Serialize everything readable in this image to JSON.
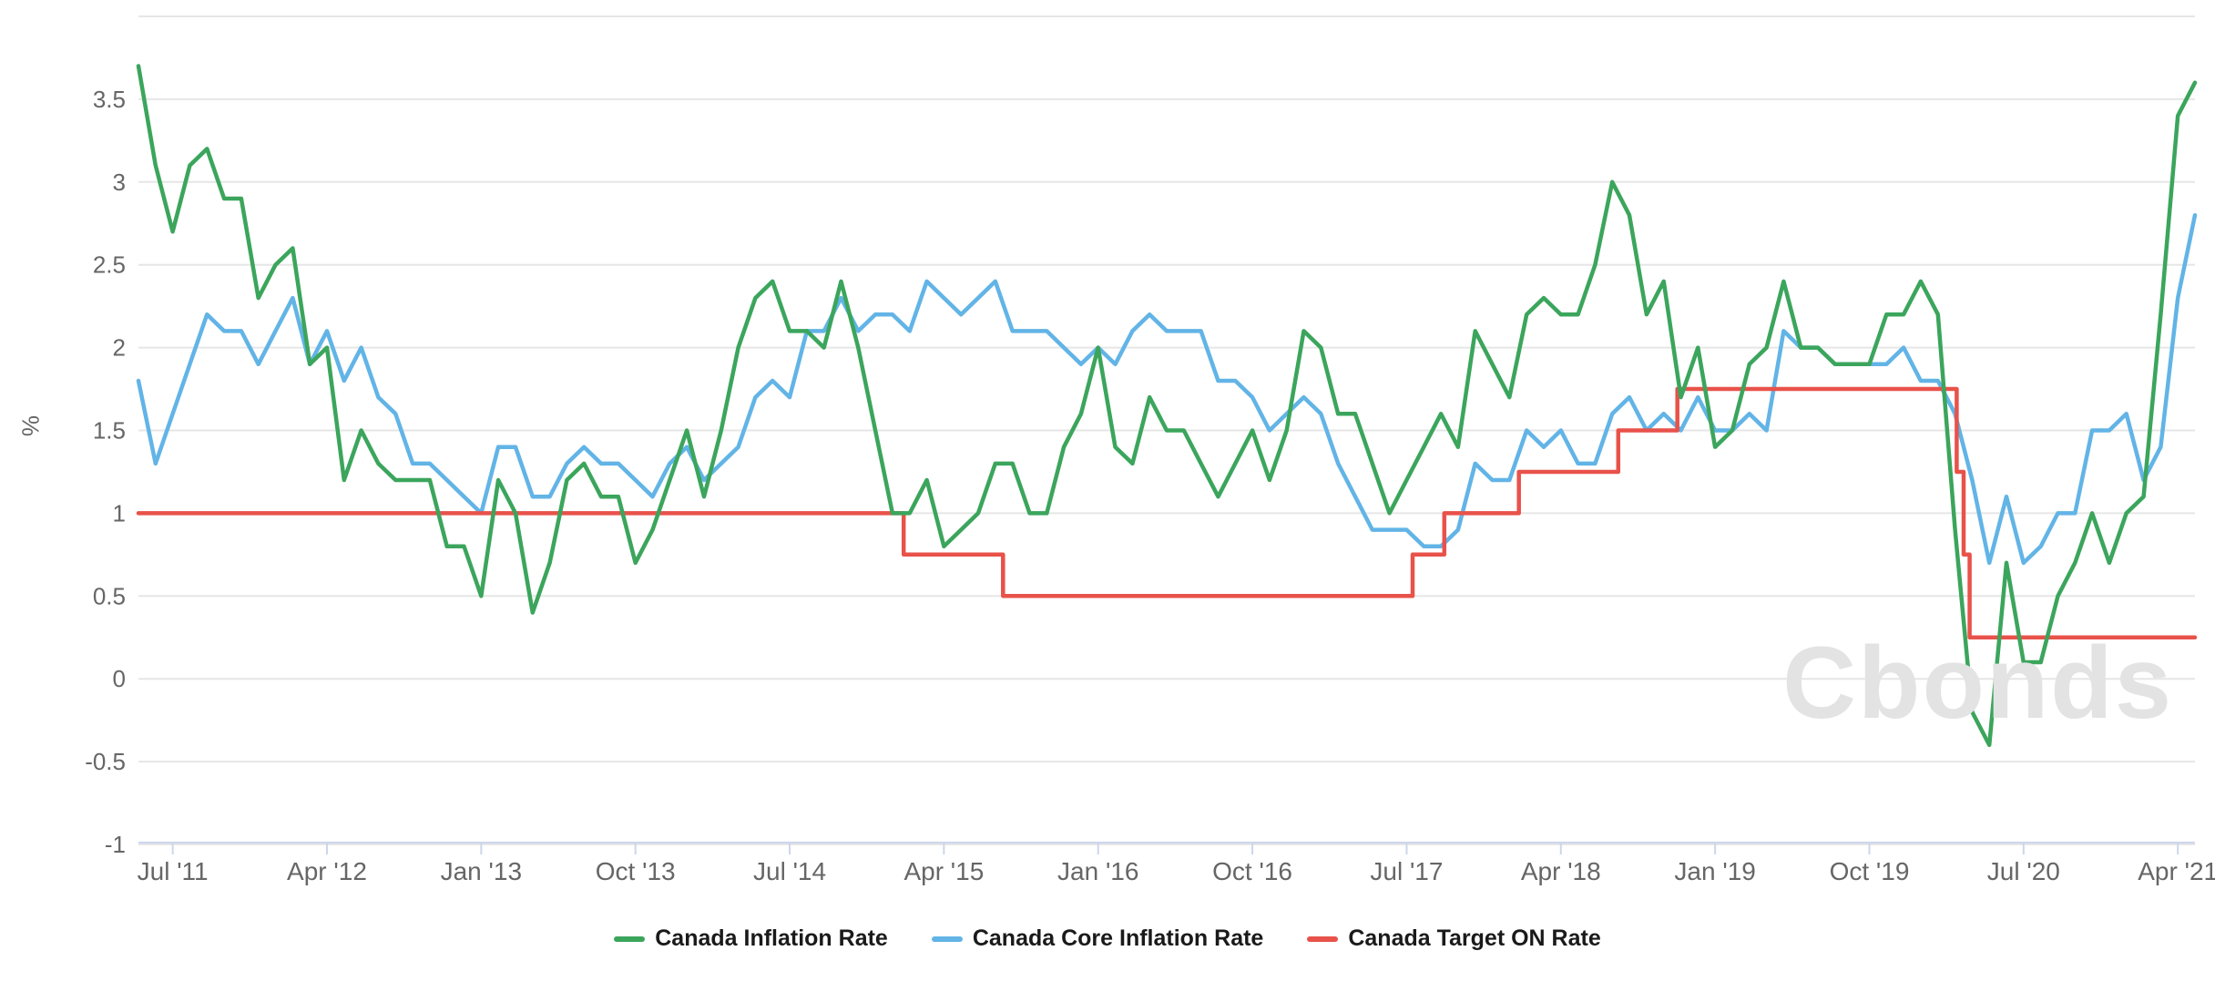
{
  "watermark": "Cbonds",
  "chart_data": {
    "type": "line",
    "title": "",
    "ylabel": "%",
    "grid": true,
    "legend_position": "bottom",
    "x_range": {
      "start": "May 2011",
      "end": "May 2021",
      "interval": "monthly"
    },
    "ylim": [
      -1,
      4
    ],
    "gridline_step": 0.5,
    "y_ticks": [
      {
        "value": 3.5,
        "label": "3.5"
      },
      {
        "value": 3,
        "label": "3"
      },
      {
        "value": 2.5,
        "label": "2.5"
      },
      {
        "value": 2,
        "label": "2"
      },
      {
        "value": 1.5,
        "label": "1.5"
      },
      {
        "value": 1,
        "label": "1"
      },
      {
        "value": 0.5,
        "label": "0.5"
      },
      {
        "value": 0,
        "label": "0"
      },
      {
        "value": -0.5,
        "label": "-0.5"
      },
      {
        "value": -1,
        "label": "-1"
      }
    ],
    "x_ticks": [
      {
        "month_index": 2,
        "label": "Jul '11"
      },
      {
        "month_index": 11,
        "label": "Apr '12"
      },
      {
        "month_index": 20,
        "label": "Jan '13"
      },
      {
        "month_index": 29,
        "label": "Oct '13"
      },
      {
        "month_index": 38,
        "label": "Jul '14"
      },
      {
        "month_index": 47,
        "label": "Apr '15"
      },
      {
        "month_index": 56,
        "label": "Jan '16"
      },
      {
        "month_index": 65,
        "label": "Oct '16"
      },
      {
        "month_index": 74,
        "label": "Jul '17"
      },
      {
        "month_index": 83,
        "label": "Apr '18"
      },
      {
        "month_index": 92,
        "label": "Jan '19"
      },
      {
        "month_index": 101,
        "label": "Oct '19"
      },
      {
        "month_index": 110,
        "label": "Jul '20"
      },
      {
        "month_index": 119,
        "label": "Apr '21"
      }
    ],
    "series": [
      {
        "name": "Canada Inflation Rate",
        "color": "#3BA55C",
        "type": "line",
        "values": [
          3.7,
          3.1,
          2.7,
          3.1,
          3.2,
          2.9,
          2.9,
          2.3,
          2.5,
          2.6,
          1.9,
          2.0,
          1.2,
          1.5,
          1.3,
          1.2,
          1.2,
          1.2,
          0.8,
          0.8,
          0.5,
          1.2,
          1.0,
          0.4,
          0.7,
          1.2,
          1.3,
          1.1,
          1.1,
          0.7,
          0.9,
          1.2,
          1.5,
          1.1,
          1.5,
          2.0,
          2.3,
          2.4,
          2.1,
          2.1,
          2.0,
          2.4,
          2.0,
          1.5,
          1.0,
          1.0,
          1.2,
          0.8,
          0.9,
          1.0,
          1.3,
          1.3,
          1.0,
          1.0,
          1.4,
          1.6,
          2.0,
          1.4,
          1.3,
          1.7,
          1.5,
          1.5,
          1.3,
          1.1,
          1.3,
          1.5,
          1.2,
          1.5,
          2.1,
          2.0,
          1.6,
          1.6,
          1.3,
          1.0,
          1.2,
          1.4,
          1.6,
          1.4,
          2.1,
          1.9,
          1.7,
          2.2,
          2.3,
          2.2,
          2.2,
          2.5,
          3.0,
          2.8,
          2.2,
          2.4,
          1.7,
          2.0,
          1.4,
          1.5,
          1.9,
          2.0,
          2.4,
          2.0,
          2.0,
          1.9,
          1.9,
          1.9,
          2.2,
          2.2,
          2.4,
          2.2,
          0.9,
          -0.2,
          -0.4,
          0.7,
          0.1,
          0.1,
          0.5,
          0.7,
          1.0,
          0.7,
          1.0,
          1.1,
          2.2,
          3.4,
          3.6
        ]
      },
      {
        "name": "Canada Core Inflation Rate",
        "color": "#62B4E6",
        "type": "line",
        "values": [
          1.8,
          1.3,
          1.6,
          1.9,
          2.2,
          2.1,
          2.1,
          1.9,
          2.1,
          2.3,
          1.9,
          2.1,
          1.8,
          2.0,
          1.7,
          1.6,
          1.3,
          1.3,
          1.2,
          1.1,
          1.0,
          1.4,
          1.4,
          1.1,
          1.1,
          1.3,
          1.4,
          1.3,
          1.3,
          1.2,
          1.1,
          1.3,
          1.4,
          1.2,
          1.3,
          1.4,
          1.7,
          1.8,
          1.7,
          2.1,
          2.1,
          2.3,
          2.1,
          2.2,
          2.2,
          2.1,
          2.4,
          2.3,
          2.2,
          2.3,
          2.4,
          2.1,
          2.1,
          2.1,
          2.0,
          1.9,
          2.0,
          1.9,
          2.1,
          2.2,
          2.1,
          2.1,
          2.1,
          1.8,
          1.8,
          1.7,
          1.5,
          1.6,
          1.7,
          1.6,
          1.3,
          1.1,
          0.9,
          0.9,
          0.9,
          0.8,
          0.8,
          0.9,
          1.3,
          1.2,
          1.2,
          1.5,
          1.4,
          1.5,
          1.3,
          1.3,
          1.6,
          1.7,
          1.5,
          1.6,
          1.5,
          1.7,
          1.5,
          1.5,
          1.6,
          1.5,
          2.1,
          2.0,
          2.0,
          1.9,
          1.9,
          1.9,
          1.9,
          2.0,
          1.8,
          1.8,
          1.6,
          1.2,
          0.7,
          1.1,
          0.7,
          0.8,
          1.0,
          1.0,
          1.5,
          1.5,
          1.6,
          1.2,
          1.4,
          2.3,
          2.8
        ]
      },
      {
        "name": "Canada Target ON Rate",
        "color": "#E8524A",
        "type": "step",
        "step_points": [
          {
            "month_index": 0,
            "value": 1.0
          },
          {
            "month_index": 44.65,
            "value": 0.75
          },
          {
            "month_index": 50.45,
            "value": 0.5
          },
          {
            "month_index": 74.35,
            "value": 0.75
          },
          {
            "month_index": 76.2,
            "value": 1.0
          },
          {
            "month_index": 80.55,
            "value": 1.25
          },
          {
            "month_index": 86.35,
            "value": 1.5
          },
          {
            "month_index": 89.8,
            "value": 1.75
          },
          {
            "month_index": 106.1,
            "value": 1.25
          },
          {
            "month_index": 106.5,
            "value": 0.75
          },
          {
            "month_index": 106.85,
            "value": 0.25
          }
        ]
      }
    ]
  },
  "colors": {
    "gridline": "#e6e6e6",
    "axis_line": "#ccd6eb",
    "axis_label": "#666666",
    "legend_text": "#1a1a1a",
    "watermark": "#e3e3e3",
    "background": "#ffffff"
  }
}
